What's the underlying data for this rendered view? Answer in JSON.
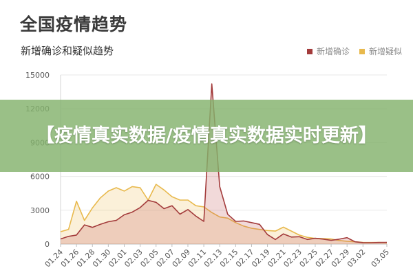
{
  "page_title": "全国疫情趋势",
  "banner_text": "【疫情真实数据/疫情真实数据实时更新】",
  "colors": {
    "confirmed": "#a33b3b",
    "suspected": "#e8b94d",
    "grid": "#e8e8e8",
    "banner": "#84b26c"
  },
  "chart_data": {
    "type": "area",
    "title": "新增确诊和疑似趋势",
    "legend_position": "top-right",
    "grid": true,
    "ylim": [
      0,
      15000
    ],
    "yticks": [
      0,
      3000,
      6000,
      9000,
      12000,
      15000
    ],
    "xtick_labels": [
      "01.24",
      "01.26",
      "01.28",
      "01.30",
      "02.01",
      "02.03",
      "02.05",
      "02.07",
      "02.09",
      "02.11",
      "02.13",
      "02.15",
      "02.17",
      "02.19",
      "02.21",
      "02.23",
      "02.25",
      "02.27",
      "02.29",
      "03.02",
      "03.05"
    ],
    "x": [
      "01.24",
      "01.25",
      "01.26",
      "01.27",
      "01.28",
      "01.29",
      "01.30",
      "01.31",
      "02.01",
      "02.02",
      "02.03",
      "02.04",
      "02.05",
      "02.06",
      "02.07",
      "02.08",
      "02.09",
      "02.10",
      "02.11",
      "02.12",
      "02.13",
      "02.14",
      "02.15",
      "02.16",
      "02.17",
      "02.18",
      "02.19",
      "02.20",
      "02.21",
      "02.22",
      "02.23",
      "02.24",
      "02.25",
      "02.26",
      "02.27",
      "02.28",
      "02.29",
      "03.01",
      "03.02",
      "03.03",
      "03.04",
      "03.05"
    ],
    "series": [
      {
        "name": "新增确诊",
        "values": [
          450,
          680,
          800,
          1700,
          1480,
          1750,
          1980,
          2100,
          2600,
          2830,
          3240,
          3880,
          3700,
          3140,
          3400,
          2650,
          3060,
          2480,
          2010,
          14200,
          5100,
          2640,
          2010,
          2050,
          1900,
          1750,
          840,
          400,
          900,
          620,
          650,
          410,
          510,
          440,
          330,
          430,
          570,
          200,
          130,
          120,
          140,
          150
        ]
      },
      {
        "name": "新增疑似",
        "values": [
          1100,
          1300,
          3800,
          2100,
          3200,
          4100,
          4700,
          5000,
          4700,
          5100,
          5000,
          3900,
          5300,
          4800,
          4200,
          3900,
          3900,
          3400,
          3300,
          2800,
          2400,
          2300,
          1900,
          1600,
          1400,
          1300,
          1200,
          1150,
          1500,
          1150,
          800,
          600,
          500,
          480,
          450,
          320,
          250,
          200,
          150,
          140,
          150,
          130
        ]
      }
    ]
  }
}
